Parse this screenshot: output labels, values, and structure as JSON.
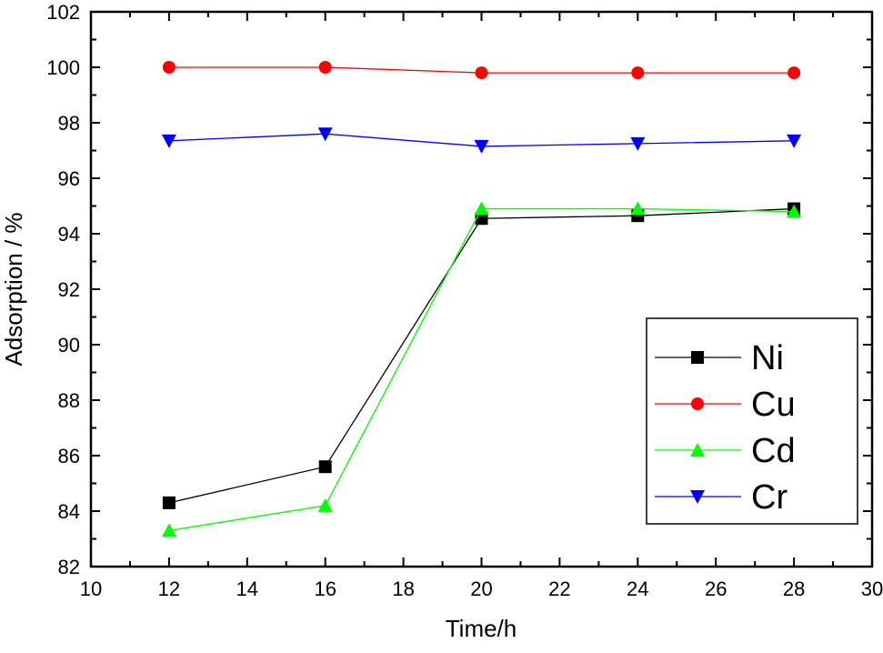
{
  "chart_data": {
    "type": "line",
    "title": "",
    "xlabel": "Time/h",
    "ylabel": "Adsorption / %",
    "xlim": [
      10,
      30
    ],
    "ylim": [
      82,
      102
    ],
    "xticks": [
      10,
      12,
      14,
      16,
      18,
      20,
      22,
      24,
      26,
      28,
      30
    ],
    "yticks": [
      82,
      84,
      86,
      88,
      90,
      92,
      94,
      96,
      98,
      100,
      102
    ],
    "grid": false,
    "legend_position": "lower-right",
    "x": [
      12,
      16,
      20,
      24,
      28
    ],
    "series": [
      {
        "name": "Ni",
        "color": "#000000",
        "marker": "square",
        "values": [
          84.3,
          85.6,
          94.55,
          94.65,
          94.9
        ]
      },
      {
        "name": "Cu",
        "color": "#ff0000",
        "marker": "circle",
        "values": [
          100.0,
          100.0,
          99.8,
          99.8,
          99.8
        ]
      },
      {
        "name": "Cd",
        "color": "#00ff00",
        "marker": "triangle-up",
        "values": [
          83.3,
          84.2,
          94.9,
          94.9,
          94.8
        ]
      },
      {
        "name": "Cr",
        "color": "#0000ff",
        "marker": "triangle-down",
        "values": [
          97.35,
          97.6,
          97.15,
          97.25,
          97.35
        ]
      }
    ]
  }
}
